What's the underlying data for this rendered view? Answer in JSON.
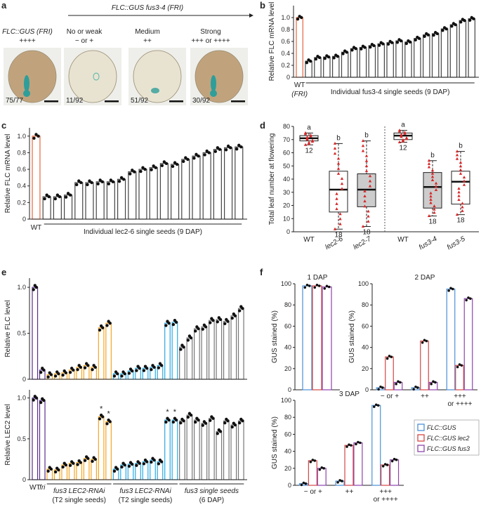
{
  "panel_a": {
    "label": "a",
    "header": "FLC::GUS fus3-4 (FRI)",
    "columns": [
      {
        "title": "FLC::GUS (FRI)",
        "grade": "++++",
        "count": "75/77",
        "stain": "strong"
      },
      {
        "title": "No or weak",
        "grade": "− or +",
        "count": "11/92",
        "stain": "none"
      },
      {
        "title": "Medium",
        "grade": "++",
        "count": "51/92",
        "stain": "medium"
      },
      {
        "title": "Strong",
        "grade": "+++ or ++++",
        "count": "30/92",
        "stain": "strong"
      }
    ],
    "colors": {
      "seed": "#e7e2cd",
      "brown": "#a7855a",
      "gus": "#2e9e9a"
    }
  },
  "chart_data": [
    {
      "panel": "b",
      "type": "bar",
      "ylabel": "Relative FLC mRNA level",
      "ylim": [
        0,
        1.2
      ],
      "yticks": [
        "0",
        "0.2",
        "0.4",
        "0.6",
        "0.8",
        "1.0"
      ],
      "wt_label": "WT",
      "wt_sub": "(FRI)",
      "group_label": "Individual fus3-4 single seeds (9 DAP)",
      "values": [
        1.0,
        0.27,
        0.33,
        0.34,
        0.35,
        0.42,
        0.48,
        0.5,
        0.53,
        0.56,
        0.58,
        0.61,
        0.59,
        0.65,
        0.71,
        0.73,
        0.81,
        0.88,
        0.95,
        0.98
      ]
    },
    {
      "panel": "c",
      "type": "bar",
      "ylabel": "Relative FLC mRNA level",
      "ylim": [
        0,
        1.1
      ],
      "yticks": [
        "0",
        "0.2",
        "0.4",
        "0.6",
        "0.8",
        "1.0"
      ],
      "wt_label": "WT",
      "group_label": "Individual lec2-6 single seeds (9 DAP)",
      "values": [
        1.0,
        0.27,
        0.27,
        0.29,
        0.44,
        0.44,
        0.45,
        0.45,
        0.48,
        0.57,
        0.6,
        0.62,
        0.67,
        0.66,
        0.72,
        0.76,
        0.8,
        0.84,
        0.86,
        0.87
      ]
    },
    {
      "panel": "d",
      "type": "box",
      "ylabel": "Total leaf number at flowering",
      "ylim": [
        0,
        80
      ],
      "yticks": [
        "0",
        "10",
        "20",
        "30",
        "40",
        "50",
        "60",
        "70",
        "80"
      ],
      "groups": [
        {
          "label": "WT",
          "min": 66,
          "q1": 69,
          "median": 71,
          "q3": 73,
          "max": 75,
          "n": "12",
          "letter": "a",
          "fill": "#ffffff",
          "set": 1
        },
        {
          "label": "lec2-6",
          "min": 2,
          "q1": 15,
          "median": 32,
          "q3": 46,
          "max": 67,
          "n": "18",
          "letter": "b",
          "fill": "#ffffff",
          "set": 1
        },
        {
          "label": "lec2-7",
          "min": 4,
          "q1": 19,
          "median": 32,
          "q3": 44,
          "max": 69,
          "n": "18",
          "letter": "b",
          "fill": "#cccccc",
          "set": 1
        },
        {
          "label": "WT",
          "min": 68,
          "q1": 70,
          "median": 73,
          "q3": 75,
          "max": 77,
          "n": "12",
          "letter": "a",
          "fill": "#ffffff",
          "set": 2
        },
        {
          "label": "fus3-4",
          "min": 12,
          "q1": 18,
          "median": 34,
          "q3": 45,
          "max": 54,
          "n": "18",
          "letter": "b",
          "fill": "#cccccc",
          "set": 2
        },
        {
          "label": "fus3-5",
          "min": 13,
          "q1": 21,
          "median": 38,
          "q3": 46,
          "max": 61,
          "n": "18",
          "letter": "b",
          "fill": "#ffffff",
          "set": 2
        }
      ]
    },
    {
      "panel": "e-FLC",
      "type": "bar",
      "ylabel": "Relative FLC level",
      "ylim": [
        0,
        1.1
      ],
      "yticks": [
        "0",
        "0.5",
        "1.0"
      ],
      "values": [
        1.0,
        0.1,
        0.05,
        0.06,
        0.07,
        0.1,
        0.13,
        0.15,
        0.13,
        0.56,
        0.61,
        0.06,
        0.06,
        0.09,
        0.12,
        0.12,
        0.13,
        0.15,
        0.61,
        0.62,
        0.35,
        0.45,
        0.55,
        0.57,
        0.64,
        0.65,
        0.63,
        0.69,
        0.77
      ],
      "colors": [
        "purple",
        "purple",
        "orange",
        "orange",
        "orange",
        "orange",
        "orange",
        "orange",
        "orange",
        "orange",
        "orange",
        "blue",
        "blue",
        "blue",
        "blue",
        "blue",
        "blue",
        "blue",
        "blue",
        "blue",
        "gray",
        "gray",
        "gray",
        "gray",
        "gray",
        "gray",
        "gray",
        "gray",
        "gray"
      ]
    },
    {
      "panel": "e-LEC2",
      "type": "bar",
      "ylabel": "Relative LEC2 level",
      "ylim": [
        0,
        1.1
      ],
      "yticks": [
        "0",
        "0.5",
        "1.0"
      ],
      "values": [
        1.0,
        0.97,
        0.13,
        0.12,
        0.18,
        0.2,
        0.21,
        0.26,
        0.25,
        0.77,
        0.71,
        0.13,
        0.18,
        0.19,
        0.2,
        0.22,
        0.24,
        0.22,
        0.73,
        0.73,
        0.72,
        0.79,
        0.73,
        0.69,
        0.75,
        0.59,
        0.72,
        0.67,
        0.72
      ],
      "colors": [
        "purple",
        "purple",
        "orange",
        "orange",
        "orange",
        "orange",
        "orange",
        "orange",
        "orange",
        "orange",
        "orange",
        "blue",
        "blue",
        "blue",
        "blue",
        "blue",
        "blue",
        "blue",
        "blue",
        "blue",
        "gray",
        "gray",
        "gray",
        "gray",
        "gray",
        "gray",
        "gray",
        "gray",
        "gray"
      ],
      "stars": [
        9,
        10,
        18,
        19
      ],
      "xlabels": {
        "wt": "WT",
        "fri": "fri",
        "g1": "fus3 LEC2-RNAi",
        "g1b": "(T2 single seeds)",
        "g2": "fus3 LEC2-RNAi",
        "g2b": "(T2 single seeds)",
        "g3": "fus3 single seeds",
        "g3b": "(6 DAP)"
      }
    },
    {
      "panel": "f",
      "type": "grouped-bar",
      "ylabel": "GUS stained (%)",
      "ylim": [
        0,
        100
      ],
      "yticks": [
        "0",
        "20",
        "40",
        "60",
        "80",
        "100"
      ],
      "series": [
        {
          "name": "FLC::GUS",
          "color": "#4a90d9"
        },
        {
          "name": "FLC::GUS lec2",
          "color": "#d64545"
        },
        {
          "name": "FLC::GUS fus3",
          "color": "#8e44ad"
        }
      ],
      "subplots": [
        {
          "title": "1 DAP",
          "categories": [
            ""
          ],
          "values": [
            [
              98
            ],
            [
              98
            ],
            [
              97
            ]
          ]
        },
        {
          "title": "2 DAP",
          "categories": [
            "− or +",
            "++",
            "+++\nor ++++"
          ],
          "values": [
            [
              2,
              2,
              95
            ],
            [
              31,
              46,
              23
            ],
            [
              7,
              7,
              86
            ]
          ]
        },
        {
          "title": "3 DAP",
          "categories": [
            "− or +",
            "++",
            "+++\nor ++++"
          ],
          "values": [
            [
              2,
              5,
              94
            ],
            [
              29,
              47,
              24
            ],
            [
              20,
              50,
              30
            ]
          ]
        }
      ]
    }
  ],
  "palette": {
    "orange": "#f5a623",
    "blue": "#29abe2",
    "purple": "#5b2c8f",
    "gray": "#777777",
    "wt_red": "#e8643a",
    "red": "#d62728"
  }
}
